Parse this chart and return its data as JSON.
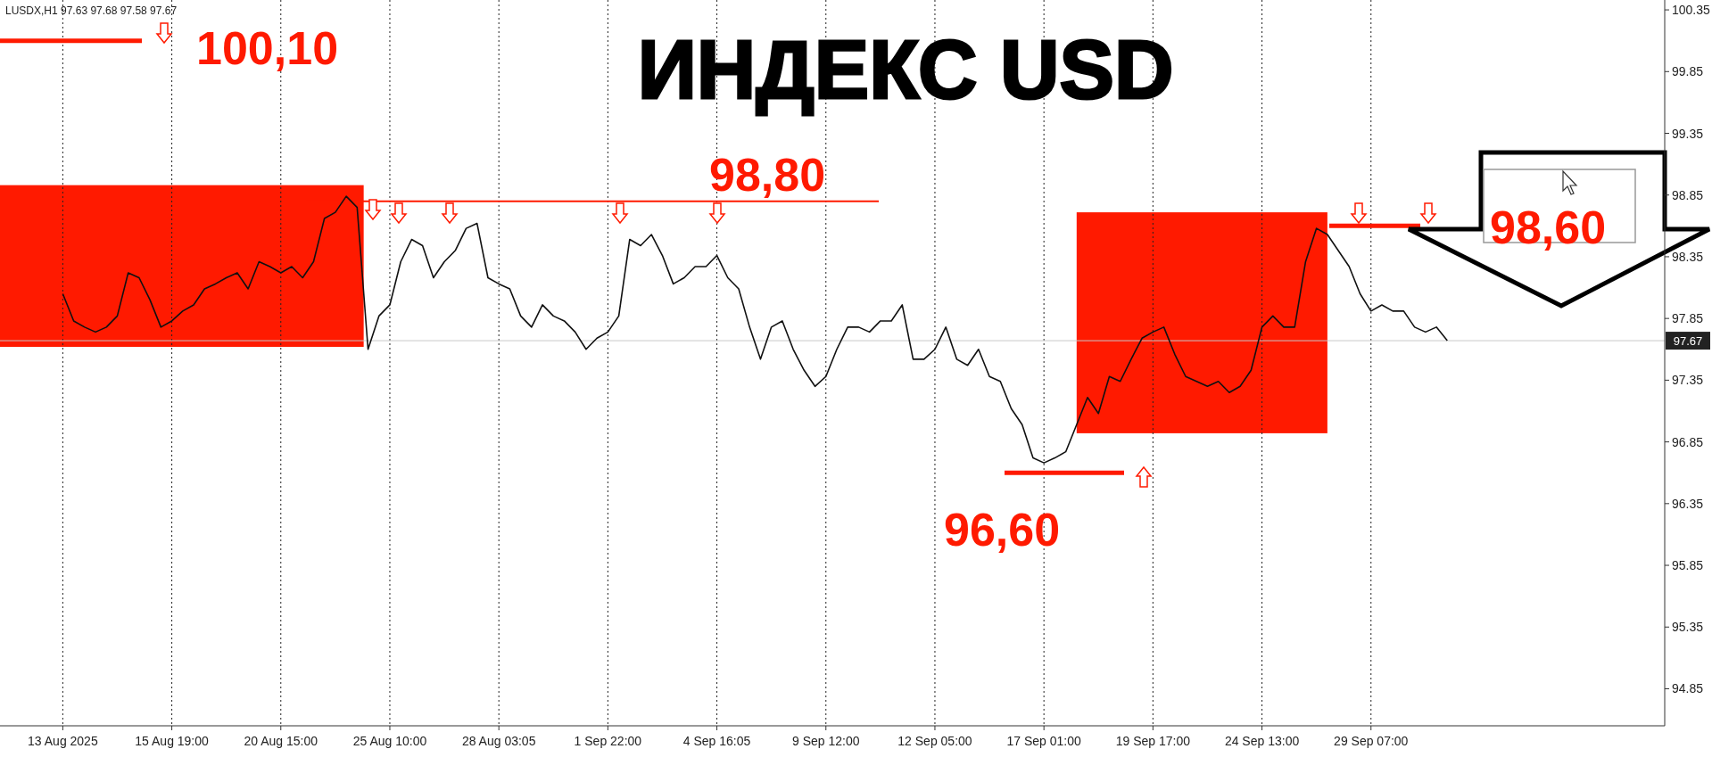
{
  "chart_data": {
    "type": "line",
    "title": "ИНДЕКС USD",
    "categories": [
      "13 Aug 2025",
      null,
      null,
      null,
      null,
      null,
      null,
      null,
      null,
      null,
      "15 Aug 19:00",
      null,
      null,
      null,
      null,
      null,
      null,
      null,
      null,
      null,
      "20 Aug 15:00",
      null,
      null,
      null,
      null,
      null,
      null,
      null,
      null,
      null,
      "25 Aug 10:00",
      null,
      null,
      null,
      null,
      null,
      null,
      null,
      null,
      null,
      "28 Aug 03:05",
      null,
      null,
      null,
      null,
      null,
      null,
      null,
      null,
      null,
      "1 Sep 22:00",
      null,
      null,
      null,
      null,
      null,
      null,
      null,
      null,
      null,
      "4 Sep 16:05",
      null,
      null,
      null,
      null,
      null,
      null,
      null,
      null,
      null,
      "9 Sep 12:00",
      null,
      null,
      null,
      null,
      null,
      null,
      null,
      null,
      null,
      "12 Sep 05:00",
      null,
      null,
      null,
      null,
      null,
      null,
      null,
      null,
      null,
      "17 Sep 01:00",
      null,
      null,
      null,
      null,
      null,
      null,
      null,
      null,
      null,
      "19 Sep 17:00",
      null,
      null,
      null,
      null,
      null,
      null,
      null,
      null,
      null,
      "24 Sep 13:00",
      null,
      null,
      null,
      null,
      null,
      null,
      null,
      null,
      null,
      "29 Sep 07:00",
      null,
      null,
      null,
      null,
      null,
      null,
      null
    ],
    "series": [
      {
        "color": "#111111",
        "values": [
          98.05,
          97.83,
          97.78,
          97.74,
          97.78,
          97.87,
          98.22,
          98.18,
          98.0,
          97.78,
          97.83,
          97.91,
          97.96,
          98.09,
          98.13,
          98.18,
          98.22,
          98.09,
          98.31,
          98.27,
          98.22,
          98.27,
          98.18,
          98.31,
          98.66,
          98.71,
          98.84,
          98.75,
          97.6,
          97.87,
          97.96,
          98.31,
          98.49,
          98.44,
          98.18,
          98.31,
          98.4,
          98.58,
          98.62,
          98.18,
          98.13,
          98.09,
          97.87,
          97.78,
          97.96,
          97.87,
          97.83,
          97.74,
          97.6,
          97.69,
          97.74,
          97.87,
          98.49,
          98.44,
          98.53,
          98.36,
          98.13,
          98.18,
          98.27,
          98.27,
          98.36,
          98.18,
          98.09,
          97.78,
          97.52,
          97.78,
          97.83,
          97.6,
          97.43,
          97.3,
          97.38,
          97.6,
          97.78,
          97.78,
          97.74,
          97.83,
          97.83,
          97.96,
          97.52,
          97.52,
          97.6,
          97.78,
          97.52,
          97.47,
          97.6,
          97.38,
          97.34,
          97.12,
          96.99,
          96.72,
          96.68,
          96.72,
          96.77,
          96.99,
          97.21,
          97.08,
          97.38,
          97.34,
          97.52,
          97.69,
          97.74,
          97.78,
          97.56,
          97.38,
          97.34,
          97.3,
          97.34,
          97.25,
          97.3,
          97.43,
          97.78,
          97.87,
          97.78,
          97.78,
          98.31,
          98.58,
          98.53,
          98.4,
          98.27,
          98.05,
          97.91,
          97.96,
          97.91,
          97.91,
          97.78,
          97.74,
          97.78,
          97.67
        ]
      }
    ],
    "ylim": [
      94.55,
      100.43
    ],
    "yticks": [
      94.85,
      95.35,
      95.85,
      96.35,
      96.85,
      97.35,
      97.85,
      98.35,
      98.85,
      99.35,
      99.85,
      100.35
    ],
    "grid": "x",
    "ref_lines": [
      {
        "axis": "y",
        "value": 97.67,
        "label": "97.67",
        "color": "#c8c8c8"
      },
      {
        "axis": "y",
        "value": 100.1,
        "label": "100,10",
        "color": "#ff1a00"
      },
      {
        "axis": "y",
        "value": 98.8,
        "label": "98,80",
        "color": "#ff1a00"
      },
      {
        "axis": "y",
        "value": 96.6,
        "label": "96,60",
        "color": "#ff1a00"
      },
      {
        "axis": "y",
        "value": 98.6,
        "label": "98,60",
        "color": "#ff1a00"
      }
    ],
    "annotations": [
      "LUSDX,H1 97.63 97.68 97.58 97.67"
    ]
  }
}
